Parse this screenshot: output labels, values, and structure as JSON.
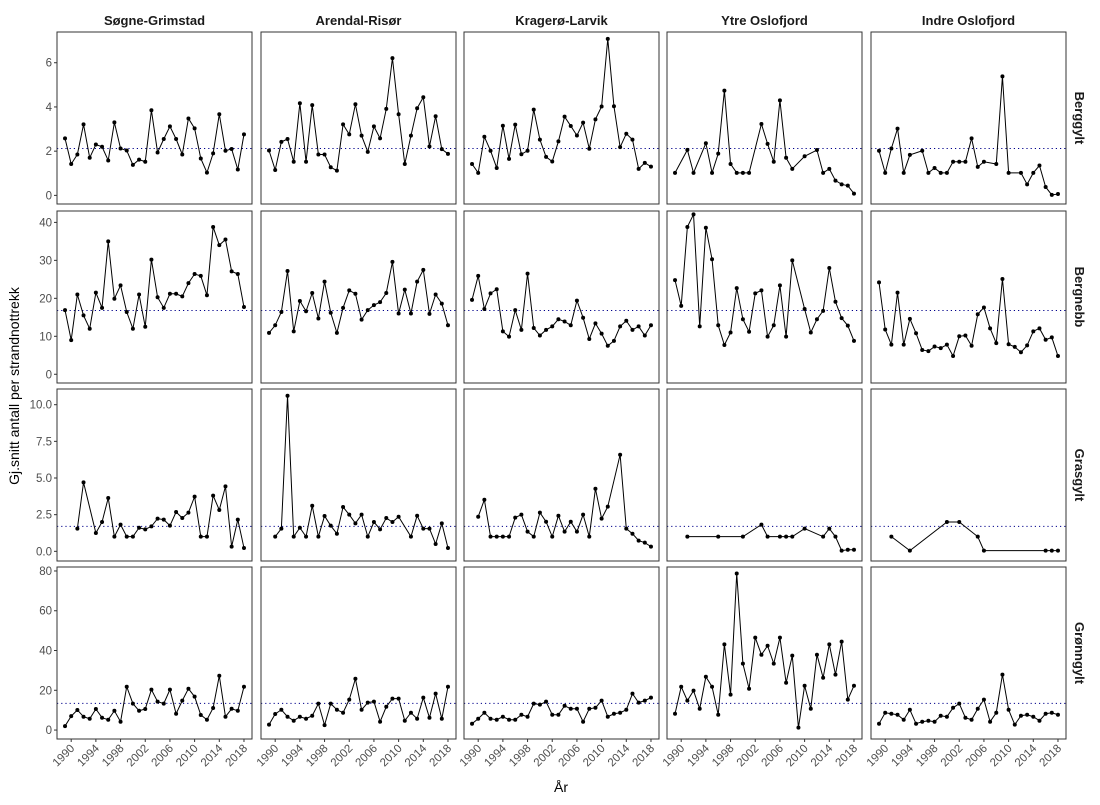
{
  "chart_data": {
    "type": "line",
    "xlabel": "År",
    "ylabel": "Gj.snitt antall per strandnottrekk",
    "columns": [
      "Søgne-Grimstad",
      "Arendal-Risør",
      "Kragerø-Larvik",
      "Ytre Oslofjord",
      "Indre Oslofjord"
    ],
    "rows": [
      "Berggylt",
      "Bergnebb",
      "Grasgylt",
      "Grønngylt"
    ],
    "xlim": [
      1987.7,
      2019.3
    ],
    "x_ticks": [
      1990,
      1994,
      1998,
      2002,
      2006,
      2010,
      2014,
      2018
    ],
    "grid": false,
    "row_axes": [
      {
        "ylim": [
          -0.39,
          7.39
        ],
        "ticks": [
          "0",
          "2",
          "4",
          "6"
        ],
        "tick_values": [
          0,
          2,
          4,
          6
        ],
        "reference_line": 2.12
      },
      {
        "ylim": [
          -2.3,
          43.0
        ],
        "ticks": [
          "0",
          "10",
          "20",
          "30",
          "40"
        ],
        "tick_values": [
          0,
          10,
          20,
          30,
          40
        ],
        "reference_line": 16.8
      },
      {
        "ylim": [
          -0.66,
          11.07
        ],
        "ticks": [
          "0.0",
          "2.5",
          "5.0",
          "7.5",
          "10.0"
        ],
        "tick_values": [
          0,
          2.5,
          5,
          7.5,
          10
        ],
        "reference_line": 1.7
      },
      {
        "ylim": [
          -4.5,
          82.0
        ],
        "ticks": [
          "0",
          "20",
          "40",
          "60",
          "80"
        ],
        "tick_values": [
          0,
          20,
          40,
          60,
          80
        ],
        "reference_line": 13.4
      }
    ],
    "colors": {
      "line": "#000000",
      "reference": "#00008B",
      "frame": "#333333"
    },
    "panels": [
      {
        "row": 0,
        "col": 0,
        "start": 1989,
        "values": [
          2.58,
          1.42,
          1.85,
          3.21,
          1.7,
          2.3,
          2.2,
          1.58,
          3.3,
          2.12,
          2.03,
          1.38,
          1.62,
          1.52,
          3.85,
          1.94,
          2.55,
          3.12,
          2.55,
          1.85,
          3.48,
          3.03,
          1.67,
          1.03,
          1.9,
          3.67,
          2.02,
          2.1,
          1.17,
          2.76
        ]
      },
      {
        "row": 0,
        "col": 1,
        "start": 1989,
        "values": [
          2.03,
          1.15,
          2.42,
          2.55,
          1.52,
          4.17,
          1.52,
          4.08,
          1.85,
          1.85,
          1.27,
          1.12,
          3.21,
          2.76,
          4.12,
          2.7,
          1.97,
          3.12,
          2.58,
          3.91,
          6.21,
          3.67,
          1.42,
          2.7,
          3.94,
          4.44,
          2.21,
          3.58,
          2.09,
          1.88
        ]
      },
      {
        "row": 0,
        "col": 2,
        "start": 1989,
        "values": [
          1.42,
          1.02,
          2.65,
          2.02,
          1.24,
          3.15,
          1.65,
          3.2,
          1.86,
          2.02,
          3.88,
          2.52,
          1.74,
          1.53,
          2.44,
          3.56,
          3.14,
          2.71,
          3.29,
          2.11,
          3.44,
          4.02,
          7.08,
          4.03,
          2.18,
          2.79,
          2.52,
          1.2,
          1.47,
          1.3
        ]
      },
      {
        "row": 0,
        "col": 3,
        "years": [
          1989,
          1991,
          1992,
          1994,
          1995,
          1996,
          1997,
          1998,
          1999,
          2000,
          2001,
          2003,
          2004,
          2005,
          2006,
          2007,
          2008,
          2010,
          2012,
          2013,
          2014,
          2015,
          2016,
          2017,
          2018
        ],
        "values": [
          1.02,
          2.06,
          1.02,
          2.36,
          1.02,
          1.89,
          4.74,
          1.42,
          1.02,
          1.02,
          1.02,
          3.23,
          2.33,
          1.52,
          4.3,
          1.7,
          1.2,
          1.77,
          2.05,
          1.02,
          1.2,
          0.67,
          0.5,
          0.44,
          0.08
        ]
      },
      {
        "row": 0,
        "col": 4,
        "years": [
          1989,
          1990,
          1991,
          1992,
          1993,
          1994,
          1996,
          1997,
          1998,
          1999,
          2000,
          2001,
          2002,
          2003,
          2004,
          2005,
          2006,
          2008,
          2009,
          2010,
          2012,
          2013,
          2014,
          2015,
          2016,
          2017,
          2018
        ],
        "values": [
          2.02,
          1.02,
          2.12,
          3.02,
          1.02,
          1.83,
          2.02,
          1.02,
          1.24,
          1.02,
          1.02,
          1.52,
          1.52,
          1.52,
          2.58,
          1.29,
          1.52,
          1.42,
          5.38,
          1.02,
          1.02,
          0.5,
          1.02,
          1.35,
          0.38,
          0.02,
          0.06
        ]
      },
      {
        "row": 1,
        "col": 0,
        "start": 1989,
        "values": [
          16.9,
          9.0,
          21.0,
          15.5,
          12.0,
          21.5,
          17.5,
          35.0,
          19.9,
          23.4,
          16.4,
          12.0,
          21.0,
          12.5,
          30.2,
          20.3,
          17.5,
          21.2,
          21.2,
          20.5,
          24.0,
          26.4,
          25.9,
          20.8,
          38.8,
          34.0,
          35.5,
          27.1,
          26.4,
          17.7
        ]
      },
      {
        "row": 1,
        "col": 1,
        "start": 1989,
        "values": [
          10.9,
          12.9,
          16.4,
          27.2,
          11.3,
          19.3,
          16.6,
          21.4,
          14.7,
          24.4,
          16.2,
          10.9,
          17.5,
          22.1,
          21.2,
          14.4,
          16.9,
          18.2,
          19.0,
          21.4,
          29.6,
          16.0,
          22.3,
          16.0,
          24.4,
          27.5,
          15.9,
          21.0,
          18.6,
          12.9
        ]
      },
      {
        "row": 1,
        "col": 2,
        "start": 1989,
        "values": [
          19.6,
          25.9,
          17.2,
          21.3,
          22.4,
          11.3,
          9.9,
          16.9,
          11.7,
          26.5,
          12.2,
          10.2,
          11.7,
          12.6,
          14.5,
          13.9,
          12.9,
          19.4,
          14.9,
          9.3,
          13.4,
          10.7,
          7.5,
          8.8,
          12.6,
          14.1,
          11.7,
          12.6,
          10.2,
          12.9
        ]
      },
      {
        "row": 1,
        "col": 3,
        "years": [
          1989,
          1990,
          1991,
          1992,
          1993,
          1994,
          1995,
          1996,
          1997,
          1998,
          1999,
          2000,
          2001,
          2002,
          2003,
          2004,
          2005,
          2006,
          2007,
          2008,
          2010,
          2011,
          2012,
          2013,
          2014,
          2015,
          2016,
          2017,
          2018
        ],
        "values": [
          24.8,
          18.0,
          38.8,
          42.1,
          12.6,
          38.6,
          30.3,
          12.9,
          7.7,
          11.0,
          22.7,
          14.5,
          11.2,
          21.3,
          22.1,
          9.9,
          12.9,
          23.4,
          9.9,
          30.0,
          17.2,
          11.0,
          14.5,
          16.7,
          28.0,
          19.1,
          14.8,
          12.8,
          8.8
        ]
      },
      {
        "row": 1,
        "col": 4,
        "start": 1989,
        "values": [
          24.2,
          11.8,
          7.8,
          21.5,
          7.8,
          14.6,
          10.8,
          6.4,
          6.1,
          7.3,
          6.9,
          7.8,
          4.8,
          10.0,
          10.2,
          7.5,
          15.8,
          17.6,
          12.1,
          8.2,
          25.1,
          7.9,
          7.2,
          5.8,
          7.6,
          11.3,
          12.1,
          9.1,
          9.7,
          4.8
        ]
      },
      {
        "row": 2,
        "col": 0,
        "years": [
          1991,
          1992,
          1994,
          1995,
          1996,
          1997,
          1998,
          1999,
          2000,
          2001,
          2002,
          2003,
          2004,
          2005,
          2006,
          2007,
          2008,
          2009,
          2010,
          2011,
          2012,
          2013,
          2014,
          2015,
          2016,
          2017,
          2018
        ],
        "values": [
          1.55,
          4.7,
          1.25,
          2.0,
          3.64,
          1.0,
          1.82,
          1.0,
          1.0,
          1.61,
          1.5,
          1.7,
          2.23,
          2.16,
          1.75,
          2.68,
          2.27,
          2.64,
          3.73,
          1.0,
          1.0,
          3.8,
          2.82,
          4.43,
          0.32,
          2.16,
          0.23
        ]
      },
      {
        "row": 2,
        "col": 1,
        "years": [
          1990,
          1991,
          1992,
          1993,
          1994,
          1995,
          1996,
          1997,
          1998,
          1999,
          2000,
          2001,
          2002,
          2003,
          2004,
          2005,
          2006,
          2007,
          2008,
          2009,
          2010,
          2012,
          2013,
          2014,
          2015,
          2016,
          2017,
          2018
        ],
        "values": [
          1.0,
          1.55,
          10.61,
          1.0,
          1.61,
          1.0,
          3.11,
          1.0,
          2.41,
          1.75,
          1.2,
          3.02,
          2.5,
          1.91,
          2.5,
          1.0,
          2.0,
          1.5,
          2.27,
          2.0,
          2.36,
          1.0,
          2.43,
          1.55,
          1.55,
          0.5,
          1.91,
          0.23
        ]
      },
      {
        "row": 2,
        "col": 2,
        "years": [
          1990,
          1991,
          1992,
          1993,
          1994,
          1995,
          1996,
          1997,
          1998,
          1999,
          2000,
          2001,
          2002,
          2003,
          2004,
          2005,
          2006,
          2007,
          2008,
          2009,
          2010,
          2011,
          2013,
          2014,
          2015,
          2016,
          2017,
          2018
        ],
        "values": [
          2.36,
          3.52,
          1.0,
          1.0,
          1.0,
          1.0,
          2.3,
          2.5,
          1.34,
          1.0,
          2.64,
          2.02,
          1.0,
          2.43,
          1.34,
          2.02,
          1.34,
          2.5,
          1.0,
          4.27,
          2.23,
          3.05,
          6.59,
          1.55,
          1.2,
          0.73,
          0.59,
          0.32
        ]
      },
      {
        "row": 2,
        "col": 3,
        "years": [
          1991,
          1996,
          2000,
          2003,
          2004,
          2006,
          2007,
          2008,
          2010,
          2013,
          2014,
          2015,
          2016,
          2017,
          2018
        ],
        "values": [
          1.0,
          1.0,
          1.0,
          1.82,
          1.0,
          1.0,
          1.0,
          1.0,
          1.55,
          1.0,
          1.55,
          1.0,
          0.05,
          0.11,
          0.11
        ]
      },
      {
        "row": 2,
        "col": 4,
        "years": [
          1991,
          1994,
          2000,
          2002,
          2005,
          2006,
          2016,
          2017,
          2018
        ],
        "values": [
          1.0,
          0.05,
          2.0,
          2.0,
          1.0,
          0.05,
          0.05,
          0.05,
          0.05
        ]
      },
      {
        "row": 3,
        "col": 0,
        "start": 1989,
        "values": [
          2.0,
          7.0,
          10.1,
          6.7,
          5.7,
          10.6,
          6.2,
          5.2,
          9.7,
          4.2,
          21.8,
          13.3,
          9.7,
          10.6,
          20.3,
          14.3,
          13.3,
          20.3,
          8.2,
          14.8,
          20.8,
          16.8,
          7.6,
          5.2,
          11.1,
          27.3,
          6.7,
          10.7,
          9.7,
          21.8
        ]
      },
      {
        "row": 3,
        "col": 1,
        "start": 1989,
        "values": [
          2.7,
          8.1,
          10.2,
          6.7,
          4.7,
          6.7,
          5.7,
          7.2,
          13.3,
          2.5,
          13.3,
          10.2,
          8.7,
          15.3,
          25.8,
          10.2,
          13.8,
          14.3,
          4.2,
          11.7,
          15.8,
          15.8,
          4.7,
          8.7,
          5.7,
          16.3,
          6.2,
          18.3,
          5.7,
          21.8
        ]
      },
      {
        "row": 3,
        "col": 2,
        "start": 1989,
        "values": [
          3.2,
          5.7,
          8.7,
          5.7,
          5.2,
          6.7,
          5.2,
          5.2,
          7.7,
          6.7,
          13.3,
          12.8,
          14.3,
          7.7,
          7.7,
          12.2,
          10.7,
          10.7,
          4.2,
          10.7,
          11.2,
          14.8,
          6.7,
          8.2,
          8.7,
          10.2,
          18.3,
          13.8,
          14.8,
          16.3
        ]
      },
      {
        "row": 3,
        "col": 3,
        "start": 1989,
        "values": [
          8.2,
          21.8,
          14.8,
          19.8,
          10.7,
          26.8,
          21.8,
          7.7,
          43.1,
          17.8,
          78.7,
          33.4,
          20.8,
          46.5,
          37.9,
          42.4,
          33.4,
          46.5,
          23.8,
          37.4,
          1.2,
          22.3,
          10.7,
          37.9,
          26.3,
          43.1,
          27.9,
          44.5,
          15.3,
          22.3
        ]
      },
      {
        "row": 3,
        "col": 4,
        "start": 1989,
        "values": [
          3.2,
          8.7,
          8.2,
          7.7,
          5.2,
          10.2,
          3.2,
          4.2,
          4.7,
          4.2,
          7.2,
          6.7,
          11.2,
          13.3,
          6.2,
          5.2,
          10.7,
          15.3,
          4.2,
          8.7,
          27.9,
          10.2,
          2.7,
          7.2,
          7.7,
          6.7,
          4.7,
          8.2,
          8.7,
          7.7
        ]
      }
    ]
  }
}
